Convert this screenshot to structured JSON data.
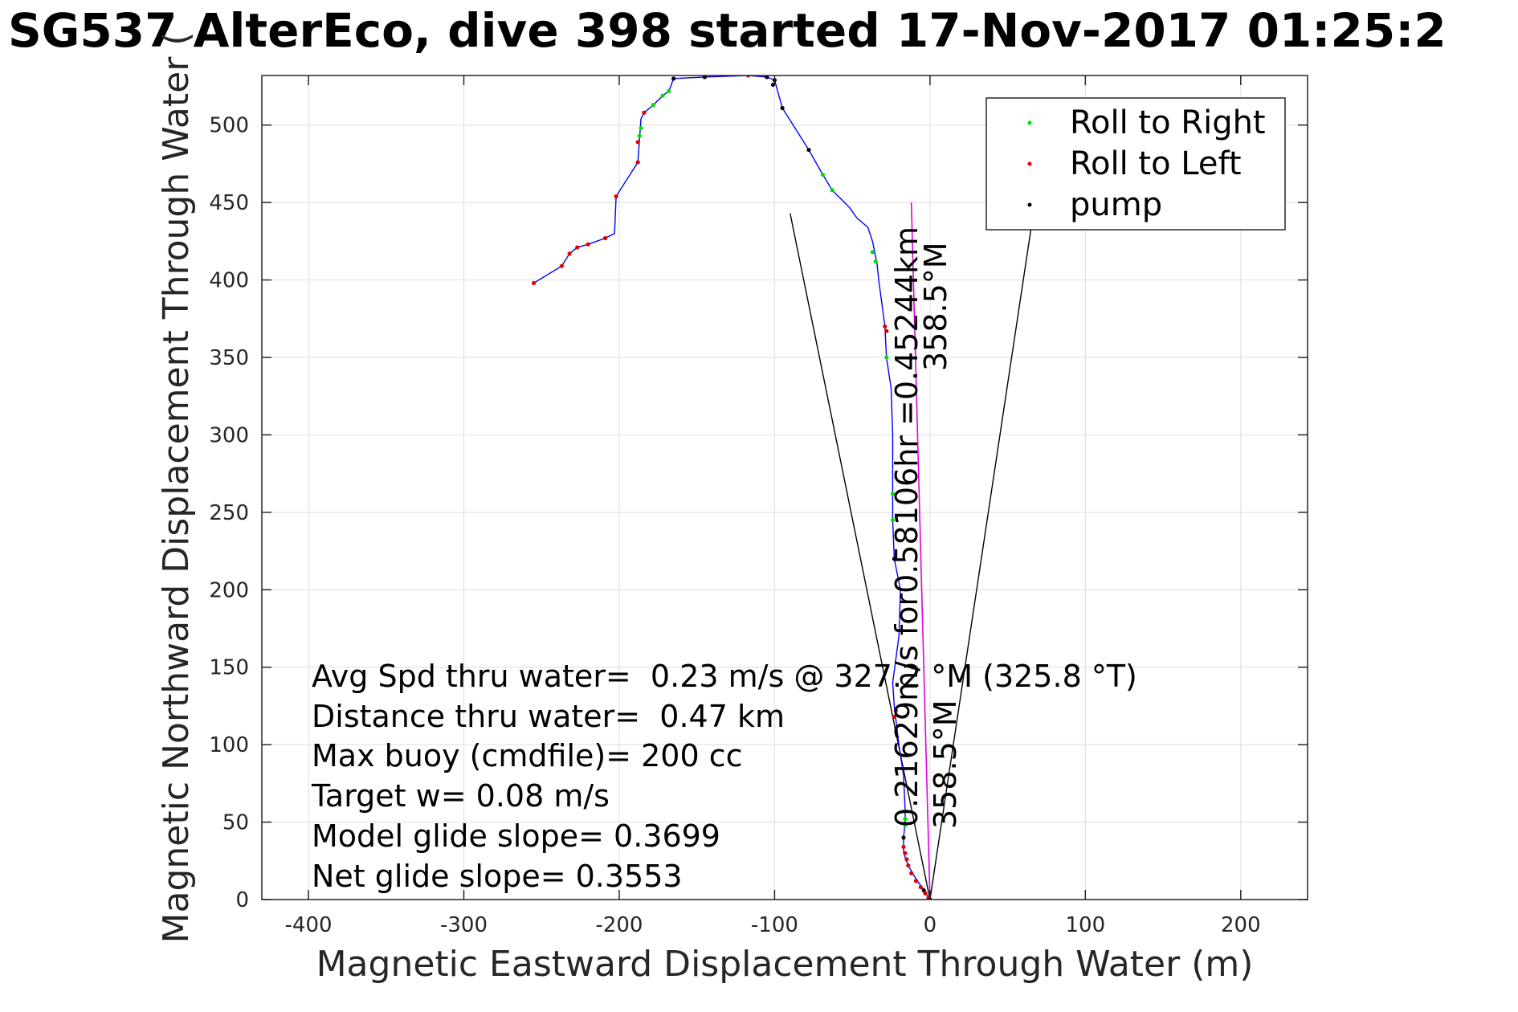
{
  "chart_data": {
    "type": "scatter",
    "title": "SG537 AlterEco, dive 398 started 17-Nov-2017 01:25:2",
    "xlabel": "Magnetic Eastward Displacement Through Water (m)",
    "ylabel": "Magnetic Northward Displacement Through Water (",
    "xlim": [
      -430,
      243
    ],
    "ylim": [
      0,
      532
    ],
    "xticks": [
      -400,
      -300,
      -200,
      -100,
      0,
      100,
      200
    ],
    "yticks": [
      0,
      50,
      100,
      150,
      200,
      250,
      300,
      350,
      400,
      450,
      500
    ],
    "grid": true,
    "legend": {
      "placement": "top-right",
      "entries": [
        {
          "label": "Roll to Right",
          "color": "#00e000"
        },
        {
          "label": "Roll to Left",
          "color": "#e00000"
        },
        {
          "label": "pump",
          "color": "#000000"
        }
      ]
    },
    "track": {
      "color": "#0000ff",
      "points": [
        [
          0,
          0
        ],
        [
          -4,
          6
        ],
        [
          -10,
          15
        ],
        [
          -14,
          22
        ],
        [
          -17,
          30
        ],
        [
          -17,
          40
        ],
        [
          -16,
          50
        ],
        [
          -16,
          58
        ],
        [
          -17,
          80
        ],
        [
          -20,
          100
        ],
        [
          -23,
          125
        ],
        [
          -24,
          140
        ],
        [
          -20,
          170
        ],
        [
          -19,
          200
        ],
        [
          -23,
          220
        ],
        [
          -24,
          245
        ],
        [
          -24,
          262
        ],
        [
          -24,
          300
        ],
        [
          -25,
          330
        ],
        [
          -28,
          350
        ],
        [
          -29,
          370
        ],
        [
          -31,
          385
        ],
        [
          -33,
          400
        ],
        [
          -34,
          410
        ],
        [
          -37,
          425
        ],
        [
          -40,
          434
        ],
        [
          -47,
          440
        ],
        [
          -52,
          447
        ],
        [
          -63,
          458
        ],
        [
          -69,
          468
        ],
        [
          -78,
          484
        ],
        [
          -95,
          511
        ],
        [
          -100,
          529
        ],
        [
          -105,
          531
        ],
        [
          -117,
          532
        ],
        [
          -145,
          531
        ],
        [
          -165,
          530
        ],
        [
          -168,
          522
        ],
        [
          -172,
          519
        ],
        [
          -178,
          513
        ],
        [
          -184,
          508
        ],
        [
          -186,
          504
        ],
        [
          -187,
          490
        ],
        [
          -188,
          476
        ],
        [
          -202,
          454
        ],
        [
          -203,
          430
        ],
        [
          -209,
          427
        ],
        [
          -220,
          423
        ],
        [
          -227,
          421
        ],
        [
          -232,
          417
        ],
        [
          -237,
          409
        ],
        [
          -255,
          398
        ]
      ]
    },
    "roll_right_points": [
      [
        -16,
        48
      ],
      [
        -16,
        52
      ],
      [
        -16,
        57
      ],
      [
        -24,
        245
      ],
      [
        -24,
        262
      ],
      [
        -35,
        412
      ],
      [
        -37,
        418
      ],
      [
        -63,
        458
      ],
      [
        -69,
        468
      ],
      [
        -187,
        493
      ],
      [
        -186,
        498
      ],
      [
        -178,
        513
      ],
      [
        -172,
        519
      ],
      [
        -168,
        522
      ],
      [
        -28,
        350
      ]
    ],
    "roll_left_points": [
      [
        -1,
        1
      ],
      [
        -3,
        4
      ],
      [
        -6,
        8
      ],
      [
        -9,
        12
      ],
      [
        -12,
        17
      ],
      [
        -14,
        22
      ],
      [
        -15,
        26
      ],
      [
        -16,
        30
      ],
      [
        -17,
        34
      ],
      [
        -23,
        118
      ],
      [
        -22,
        122
      ],
      [
        -28,
        367
      ],
      [
        -29,
        370
      ],
      [
        -188,
        476
      ],
      [
        -188,
        489
      ],
      [
        -202,
        454
      ],
      [
        -209,
        427
      ],
      [
        -220,
        423
      ],
      [
        -227,
        421
      ],
      [
        -232,
        417
      ],
      [
        -237,
        409
      ],
      [
        -255,
        398
      ],
      [
        -117,
        532
      ],
      [
        -184,
        508
      ]
    ],
    "pump_points": [
      [
        0,
        0
      ],
      [
        -4,
        6
      ],
      [
        -17,
        40
      ],
      [
        -100,
        529
      ],
      [
        -101,
        526
      ],
      [
        -95,
        511
      ],
      [
        -78,
        484
      ],
      [
        -165,
        530
      ],
      [
        -145,
        531
      ],
      [
        -105,
        531
      ],
      [
        -23,
        220
      ]
    ],
    "current_track": {
      "color": "#e000e0",
      "points": [
        [
          0,
          0
        ],
        [
          -12,
          450
        ]
      ]
    },
    "cone_lines": [
      {
        "from": [
          0,
          0
        ],
        "to": [
          -90,
          443
        ]
      },
      {
        "from": [
          0,
          0
        ],
        "to": [
          65,
          433
        ]
      }
    ],
    "annotations": {
      "rotated_long": "0.45244km",
      "rotated_long_full": "0.21629m/s for0.58106hr =0.45244km",
      "heading_upper": "358.5°M",
      "heading_lower": "358.5°M",
      "summary_lines": [
        "Avg Spd thru water=  0.23 m/s @ 327.2 °M (325.8 °T)",
        "Distance thru water=  0.47 km",
        "Max buoy (cmdfile)= 200 cc",
        "Target w= 0.08 m/s",
        "Model glide slope= 0.3699",
        "Net glide slope= 0.3553"
      ]
    }
  }
}
